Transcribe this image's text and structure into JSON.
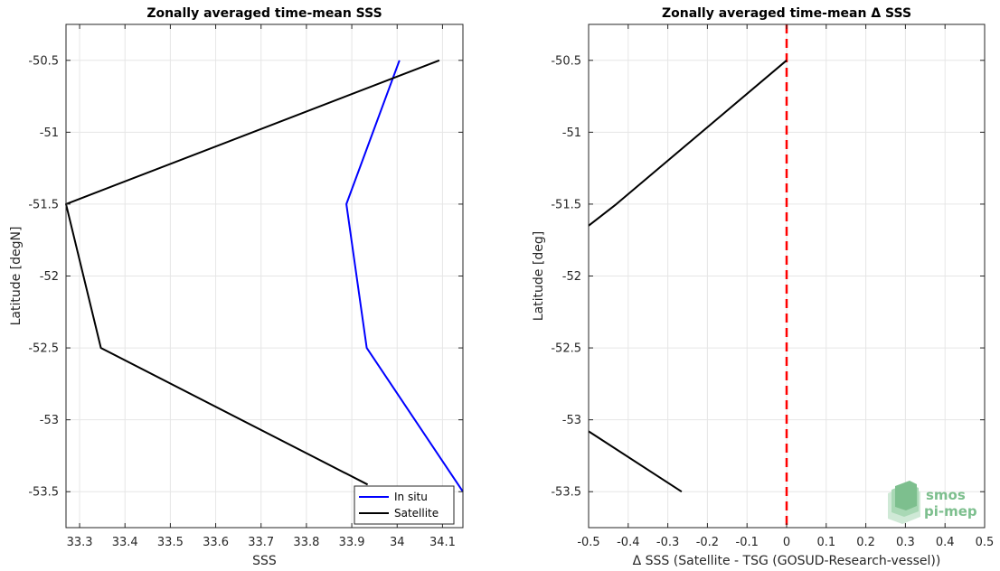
{
  "chart_data": [
    {
      "type": "line",
      "title": "Zonally averaged time-mean SSS",
      "xlabel": "SSS",
      "ylabel": "Latitude [degN]",
      "xlim": [
        33.27,
        34.145
      ],
      "ylim": [
        -53.75,
        -50.25
      ],
      "x_ticks": [
        "33.3",
        "33.4",
        "33.5",
        "33.6",
        "33.7",
        "33.8",
        "33.9",
        "34",
        "34.1"
      ],
      "x_tick_values": [
        33.3,
        33.4,
        33.5,
        33.6,
        33.7,
        33.8,
        33.9,
        34.0,
        34.1
      ],
      "y_ticks": [
        "-50.5",
        "-51",
        "-51.5",
        "-52",
        "-52.5",
        "-53",
        "-53.5"
      ],
      "y_tick_values": [
        -50.5,
        -51,
        -51.5,
        -52,
        -52.5,
        -53,
        -53.5
      ],
      "grid": true,
      "legend_position": "bottom-right",
      "series": [
        {
          "name": "In situ",
          "color": "#0000ff",
          "x": [
            34.005,
            33.888,
            33.933,
            34.145
          ],
          "y": [
            -50.5,
            -51.5,
            -52.5,
            -53.5
          ]
        },
        {
          "name": "Satellite",
          "color": "#000000",
          "x": [
            34.093,
            33.27,
            33.347,
            33.935
          ],
          "y": [
            -50.5,
            -51.5,
            -52.5,
            -53.45
          ]
        }
      ]
    },
    {
      "type": "line",
      "title": "Zonally averaged time-mean Δ SSS",
      "xlabel": "Δ SSS (Satellite - TSG (GOSUD-Research-vessel))",
      "ylabel": "Latitude [deg]",
      "xlim": [
        -0.5,
        0.5
      ],
      "ylim": [
        -53.75,
        -50.25
      ],
      "x_ticks": [
        "-0.5",
        "-0.4",
        "-0.3",
        "-0.2",
        "-0.1",
        "0",
        "0.1",
        "0.2",
        "0.3",
        "0.4",
        "0.5"
      ],
      "x_tick_values": [
        -0.5,
        -0.4,
        -0.3,
        -0.2,
        -0.1,
        0,
        0.1,
        0.2,
        0.3,
        0.4,
        0.5
      ],
      "y_ticks": [
        "-50.5",
        "-51",
        "-51.5",
        "-52",
        "-52.5",
        "-53",
        "-53.5"
      ],
      "y_tick_values": [
        -50.5,
        -51,
        -51.5,
        -52,
        -52.5,
        -53,
        -53.5
      ],
      "grid": true,
      "reference_line": {
        "x": 0,
        "color": "#ff0000",
        "style": "dashed"
      },
      "series": [
        {
          "color": "#000000",
          "x": [
            0.0,
            -0.43,
            -0.5
          ],
          "y": [
            -50.5,
            -51.5,
            -51.65
          ]
        },
        {
          "color": "#000000",
          "x": [
            -0.5,
            -0.265
          ],
          "y": [
            -53.08,
            -53.5
          ]
        }
      ]
    }
  ],
  "logo": {
    "line1": "smos",
    "line2": "pi-mep",
    "color": "#7dbf8e"
  }
}
